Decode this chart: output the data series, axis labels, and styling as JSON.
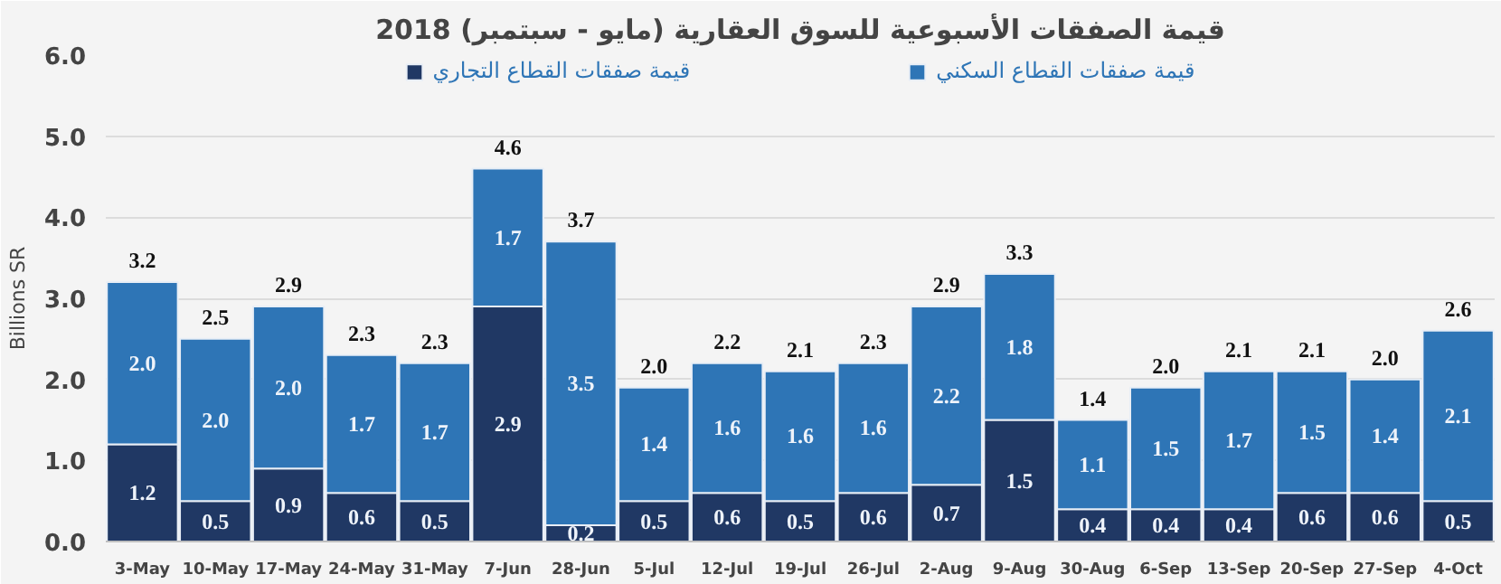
{
  "chart_data": {
    "type": "bar",
    "stacked": true,
    "title": "قيمة الصفقات الأسبوعية للسوق العقارية (مايو - سبتمبر) 2018",
    "ylabel": "Billions SR",
    "categories": [
      "3-May",
      "10-May",
      "17-May",
      "24-May",
      "31-May",
      "7-Jun",
      "28-Jun",
      "5-Jul",
      "12-Jul",
      "19-Jul",
      "26-Jul",
      "2-Aug",
      "9-Aug",
      "30-Aug",
      "6-Sep",
      "13-Sep",
      "20-Sep",
      "27-Sep",
      "4-Oct"
    ],
    "series": [
      {
        "name": "قيمة صفقات القطاع التجاري",
        "color": "#203864",
        "values": [
          1.2,
          0.5,
          0.9,
          0.6,
          0.5,
          2.9,
          0.2,
          0.5,
          0.6,
          0.5,
          0.6,
          0.7,
          1.5,
          0.4,
          0.4,
          0.4,
          0.6,
          0.6,
          0.5
        ],
        "value_labels": [
          "1.2",
          "0.5",
          "0.9",
          "0.6",
          "0.5",
          "2.9",
          "0.2",
          "0.5",
          "0.6",
          "0.5",
          "0.6",
          "0.7",
          "1.5",
          "0.4",
          "0.4",
          "0.4",
          "0.6",
          "0.6",
          "0.5"
        ]
      },
      {
        "name": "قيمة صفقات القطاع السكني",
        "color": "#2e75b6",
        "values": [
          2.0,
          2.0,
          2.0,
          1.7,
          1.7,
          1.7,
          3.5,
          1.4,
          1.6,
          1.6,
          1.6,
          2.2,
          1.8,
          1.1,
          1.5,
          1.7,
          1.5,
          1.4,
          2.1
        ],
        "value_labels": [
          "2.0",
          "2.0",
          "2.0",
          "1.7",
          "1.7",
          "1.7",
          "3.5",
          "1.4",
          "1.6",
          "1.6",
          "1.6",
          "2.2",
          "1.8",
          "1.1",
          "1.5",
          "1.7",
          "1.5",
          "1.4",
          "2.1"
        ]
      }
    ],
    "totals": [
      "3.2",
      "2.5",
      "2.9",
      "2.3",
      "2.3",
      "4.6",
      "3.7",
      "2.0",
      "2.2",
      "2.1",
      "2.3",
      "2.9",
      "3.3",
      "1.4",
      "2.0",
      "2.1",
      "2.1",
      "2.0",
      "2.6"
    ],
    "ylim": [
      0,
      6
    ],
    "yticks": [
      {
        "value": 0,
        "label": "0.0"
      },
      {
        "value": 1,
        "label": "1.0"
      },
      {
        "value": 2,
        "label": "2.0"
      },
      {
        "value": 3,
        "label": "3.0"
      },
      {
        "value": 4,
        "label": "4.0"
      },
      {
        "value": 5,
        "label": "5.0"
      },
      {
        "value": 6,
        "label": "6.0"
      }
    ],
    "grid": "y",
    "legend": "top"
  }
}
